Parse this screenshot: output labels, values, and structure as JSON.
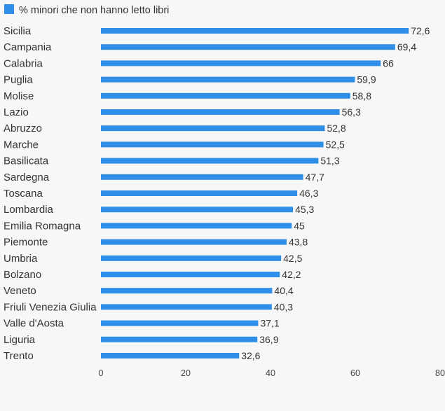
{
  "chart_data": {
    "type": "bar",
    "orientation": "horizontal",
    "legend": {
      "label": "% minori che non hanno letto libri",
      "position": "top-left"
    },
    "series_color": "#2f8fe8",
    "categories": [
      "Sicilia",
      "Campania",
      "Calabria",
      "Puglia",
      "Molise",
      "Lazio",
      "Abruzzo",
      "Marche",
      "Basilicata",
      "Sardegna",
      "Toscana",
      "Lombardia",
      "Emilia Romagna",
      "Piemonte",
      "Umbria",
      "Bolzano",
      "Veneto",
      "Friuli Venezia Giulia",
      "Valle d'Aosta",
      "Liguria",
      "Trento"
    ],
    "values": [
      72.6,
      69.4,
      66,
      59.9,
      58.8,
      56.3,
      52.8,
      52.5,
      51.3,
      47.7,
      46.3,
      45.3,
      45,
      43.8,
      42.5,
      42.2,
      40.4,
      40.3,
      37.1,
      36.9,
      32.6
    ],
    "value_labels": [
      "72,6",
      "69,4",
      "66",
      "59,9",
      "58,8",
      "56,3",
      "52,8",
      "52,5",
      "51,3",
      "47,7",
      "46,3",
      "45,3",
      "45",
      "43,8",
      "42,5",
      "42,2",
      "40,4",
      "40,3",
      "37,1",
      "36,9",
      "32,6"
    ],
    "xlim": [
      0,
      80
    ],
    "xticks": [
      0,
      20,
      40,
      60,
      80
    ],
    "xlabel": "",
    "ylabel": "",
    "grid": false
  }
}
